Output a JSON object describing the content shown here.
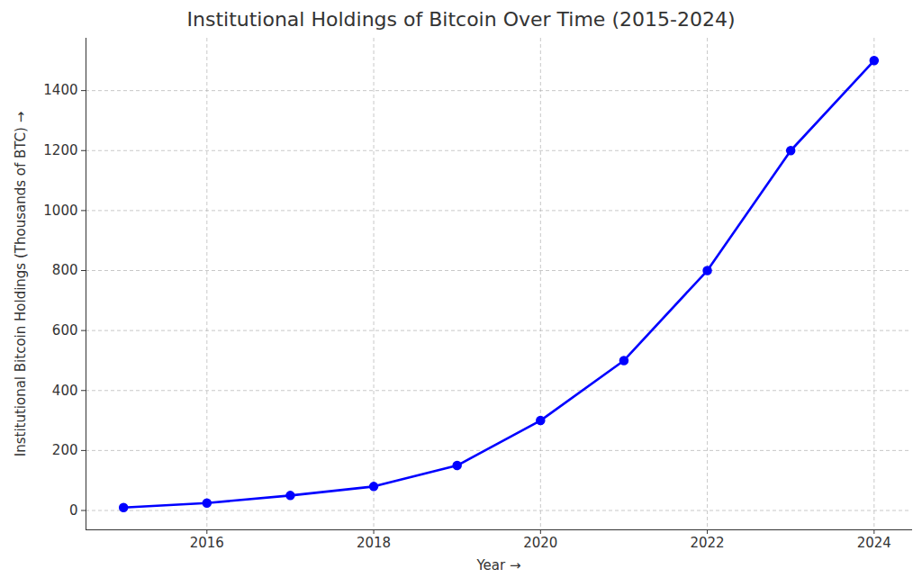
{
  "chart_data": {
    "type": "line",
    "title": "Institutional Holdings of Bitcoin Over Time (2015-2024)",
    "xlabel": "Year",
    "ylabel": "Institutional Bitcoin Holdings (Thousands of BTC)",
    "x": [
      2015,
      2016,
      2017,
      2018,
      2019,
      2020,
      2021,
      2022,
      2023,
      2024
    ],
    "values": [
      10,
      25,
      50,
      80,
      150,
      300,
      500,
      800,
      1200,
      1500
    ],
    "color": "#0000ff",
    "marker": "o",
    "line_style": "solid",
    "xlim": [
      2014.55,
      2024.45
    ],
    "xticks": [
      2016,
      2018,
      2020,
      2022,
      2024
    ],
    "ylim": [
      -64.5,
      1574.5
    ],
    "yticks": [
      0,
      200,
      400,
      600,
      800,
      1000,
      1200,
      1400
    ],
    "grid": true
  }
}
